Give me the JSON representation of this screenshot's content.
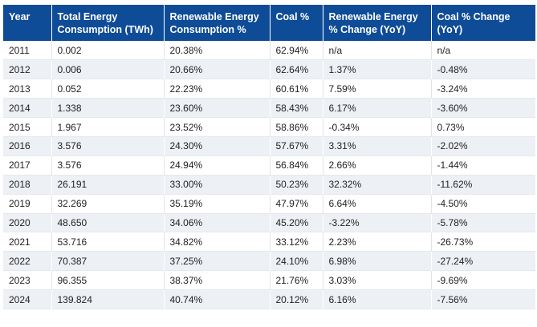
{
  "table": {
    "headers": [
      "Year",
      "Total Energy Consumption (TWh)",
      "Renewable Energy Consumption %",
      "Coal %",
      "Renewable Energy % Change (YoY)",
      "Coal % Change (YoY)"
    ],
    "rows": [
      [
        "2011",
        "0.002",
        "20.38%",
        "62.94%",
        "n/a",
        "n/a"
      ],
      [
        "2012",
        "0.006",
        "20.66%",
        "62.64%",
        "1.37%",
        "-0.48%"
      ],
      [
        "2013",
        "0.052",
        "22.23%",
        "60.61%",
        "7.59%",
        "-3.24%"
      ],
      [
        "2014",
        "1.338",
        "23.60%",
        "58.43%",
        "6.17%",
        "-3.60%"
      ],
      [
        "2015",
        "1.967",
        "23.52%",
        "58.86%",
        "-0.34%",
        "0.73%"
      ],
      [
        "2016",
        "3.576",
        "24.30%",
        "57.67%",
        "3.31%",
        "-2.02%"
      ],
      [
        "2017",
        "3.576",
        "24.94%",
        "56.84%",
        "2.66%",
        "-1.44%"
      ],
      [
        "2018",
        "26.191",
        "33.00%",
        "50.23%",
        "32.32%",
        "-11.62%"
      ],
      [
        "2019",
        "32.269",
        "35.19%",
        "47.97%",
        "6.64%",
        "-4.50%"
      ],
      [
        "2020",
        "48.650",
        "34.06%",
        "45.20%",
        "-3.22%",
        "-5.78%"
      ],
      [
        "2021",
        "53.716",
        "34.82%",
        "33.12%",
        "2.23%",
        "-26.73%"
      ],
      [
        "2022",
        "70.387",
        "37.25%",
        "24.10%",
        "6.98%",
        "-27.24%"
      ],
      [
        "2023",
        "96.355",
        "38.37%",
        "21.76%",
        "3.03%",
        "-9.69%"
      ],
      [
        "2024",
        "139.824",
        "40.74%",
        "20.12%",
        "6.16%",
        "-7.56%"
      ]
    ]
  },
  "colors": {
    "header_bg": "#0f4c97",
    "header_text": "#ffffff",
    "stripe_row": "#edf0f5"
  }
}
